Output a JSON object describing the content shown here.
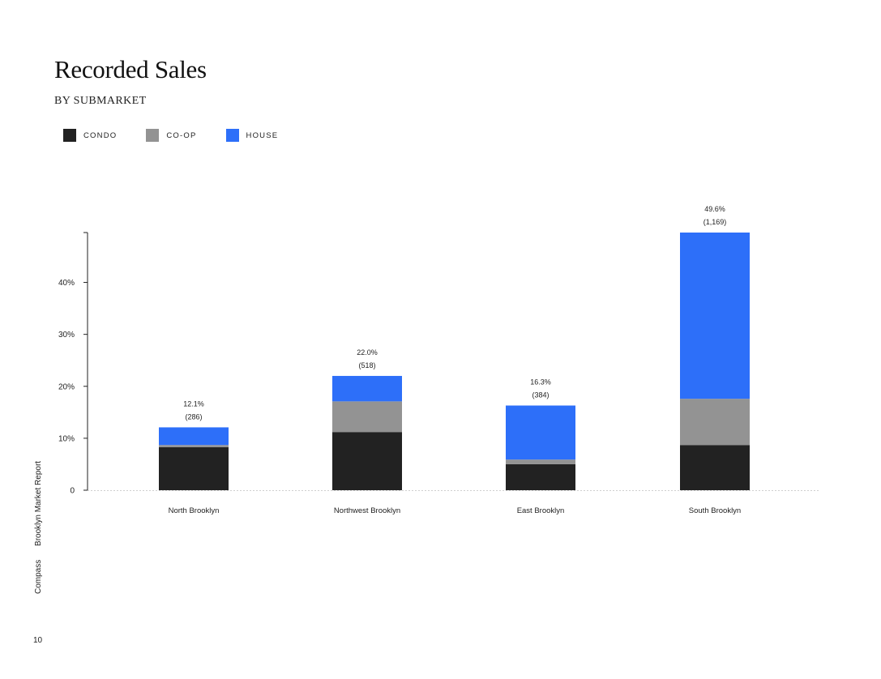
{
  "page": {
    "title": "Recorded Sales",
    "subtitle": "BY SUBMARKET",
    "side_label_brand": "Compass",
    "side_label_report": "Brooklyn Market Report",
    "page_number": "10"
  },
  "legend": [
    {
      "label": "CONDO",
      "color": "#222222"
    },
    {
      "label": "CO-OP",
      "color": "#939393"
    },
    {
      "label": "HOUSE",
      "color": "#2d6ff9"
    }
  ],
  "chart_data": {
    "type": "bar",
    "stacked": true,
    "categories": [
      "North Brooklyn",
      "Northwest Brooklyn",
      "East Brooklyn",
      "South Brooklyn"
    ],
    "series": [
      {
        "name": "CONDO",
        "color": "#222222",
        "values": [
          8.3,
          11.2,
          5.0,
          8.7
        ]
      },
      {
        "name": "CO-OP",
        "color": "#939393",
        "values": [
          0.4,
          5.9,
          0.9,
          8.9
        ]
      },
      {
        "name": "HOUSE",
        "color": "#2d6ff9",
        "values": [
          3.4,
          4.9,
          10.4,
          32.0
        ]
      }
    ],
    "totals": [
      12.1,
      22.0,
      16.3,
      49.6
    ],
    "total_labels": [
      "12.1%",
      "22.0%",
      "16.3%",
      "49.6%"
    ],
    "count_labels": [
      "(286)",
      "(518)",
      "(384)",
      "(1,169)"
    ],
    "y_ticks": [
      0,
      10,
      20,
      30,
      40
    ],
    "y_tick_labels": [
      "0",
      "10%",
      "20%",
      "30%",
      "40%"
    ],
    "ylim": [
      0,
      49.6
    ],
    "grid": false
  }
}
